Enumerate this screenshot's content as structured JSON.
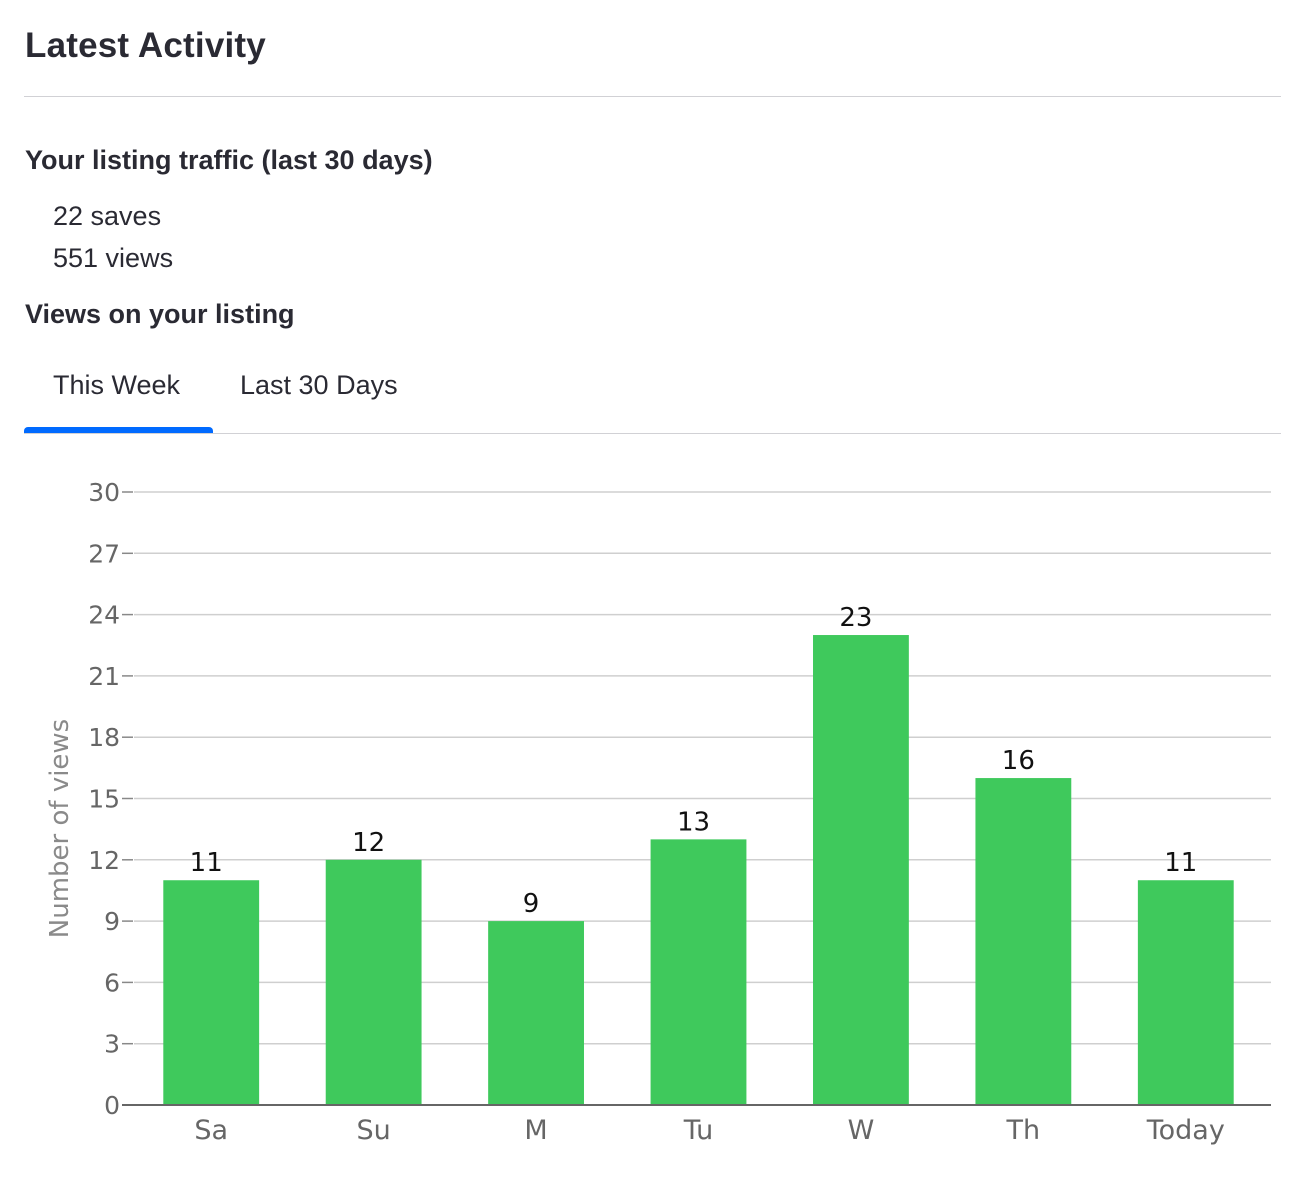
{
  "header": {
    "title": "Latest Activity"
  },
  "traffic": {
    "title": "Your listing traffic (last 30 days)",
    "saves": "22 saves",
    "views": "551 views"
  },
  "views_section": {
    "title": "Views on your listing",
    "tabs": [
      {
        "label": "This Week",
        "active": true
      },
      {
        "label": "Last 30 Days",
        "active": false
      }
    ]
  },
  "colors": {
    "accent": "#006aff",
    "bar": "#3fc95c",
    "grid": "#cfcfcf"
  },
  "chart_data": {
    "type": "bar",
    "categories": [
      "Sa",
      "Su",
      "M",
      "Tu",
      "W",
      "Th",
      "Today"
    ],
    "values": [
      11,
      12,
      9,
      13,
      23,
      16,
      11
    ],
    "title": "",
    "xlabel": "",
    "ylabel": "Number of views",
    "ylim": [
      0,
      30
    ],
    "yticks": [
      0,
      3,
      6,
      9,
      12,
      15,
      18,
      21,
      24,
      27,
      30
    ],
    "grid": true,
    "data_labels": true
  }
}
